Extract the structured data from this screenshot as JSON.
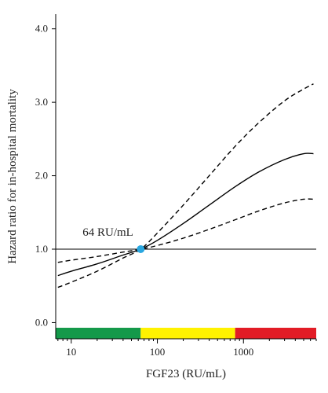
{
  "chart_data": {
    "type": "line",
    "title": "",
    "xlabel": "FGF23 (RU/mL)",
    "ylabel": "Hazard ratio for in-hospital mortality",
    "x_scale": "log",
    "xlim": [
      6.6,
      7000
    ],
    "ylim": [
      -0.22,
      4.2
    ],
    "x_ticks": [
      10,
      100,
      1000
    ],
    "x_tick_labels": [
      "10",
      "100",
      "1000"
    ],
    "y_ticks": [
      0.0,
      1.0,
      2.0,
      3.0,
      4.0
    ],
    "y_tick_labels": [
      "0.0",
      "1.0",
      "2.0",
      "3.0",
      "4.0"
    ],
    "reference_line_y": 1.0,
    "series": [
      {
        "style": "solid",
        "color": "#000000",
        "x": [
          7,
          10,
          20,
          40,
          64,
          100,
          200,
          400,
          800,
          1500,
          3000,
          5000,
          6500
        ],
        "y": [
          0.64,
          0.7,
          0.8,
          0.92,
          1.0,
          1.12,
          1.35,
          1.6,
          1.85,
          2.05,
          2.22,
          2.3,
          2.3
        ]
      },
      {
        "style": "dashed",
        "color": "#000000",
        "x": [
          7,
          10,
          20,
          40,
          64,
          100,
          200,
          400,
          800,
          1500,
          3000,
          5000,
          6500
        ],
        "y": [
          0.48,
          0.55,
          0.7,
          0.88,
          1.0,
          1.22,
          1.6,
          2.0,
          2.4,
          2.72,
          3.02,
          3.18,
          3.25
        ]
      },
      {
        "style": "dashed",
        "color": "#000000",
        "x": [
          7,
          10,
          20,
          40,
          64,
          100,
          200,
          400,
          800,
          1500,
          3000,
          5000,
          6500
        ],
        "y": [
          0.82,
          0.85,
          0.9,
          0.96,
          1.0,
          1.05,
          1.15,
          1.27,
          1.4,
          1.52,
          1.63,
          1.68,
          1.68
        ]
      }
    ],
    "marker": {
      "x": 64,
      "y": 1.0,
      "color": "#2aa7e0",
      "label": "64 RU/mL"
    },
    "color_bands": [
      {
        "from": 6.6,
        "to": 64,
        "color": "#14994a"
      },
      {
        "from": 64,
        "to": 800,
        "color": "#fff200"
      },
      {
        "from": 800,
        "to": 7000,
        "color": "#e21c26"
      }
    ]
  }
}
